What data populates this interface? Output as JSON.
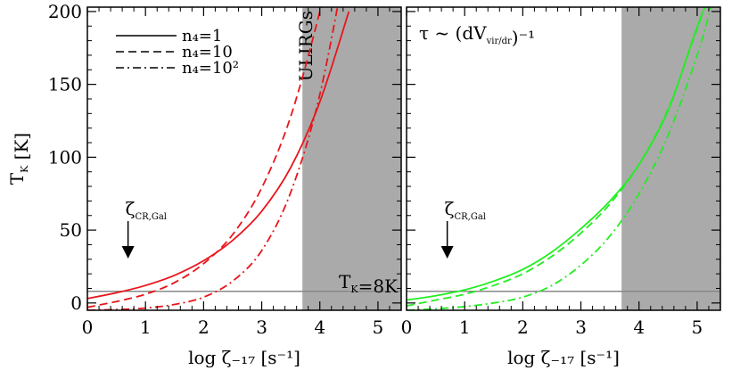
{
  "chart_data": [
    {
      "type": "line",
      "xlabel": "log ζ₋₁₇ [s⁻¹]",
      "ylabel": "T_K [K]",
      "xlim": [
        0,
        5.4
      ],
      "ylim": [
        -5,
        203
      ],
      "x_ticks": [
        "0",
        "1",
        "2",
        "3",
        "4",
        "5"
      ],
      "y_ticks": [
        "0",
        "50",
        "100",
        "150",
        "200"
      ],
      "color": "#e8151b",
      "shaded_region": {
        "from": 3.7,
        "to": 5.4,
        "label": "ULIRGs",
        "color": "#aaaaaa"
      },
      "hline": {
        "y": 8,
        "label": "T_K=8K",
        "color": "#888888"
      },
      "arrow": {
        "x": 0.7,
        "label": "ζ_CR,Gal"
      },
      "legend": [
        {
          "name": "n₄=1",
          "style": "solid"
        },
        {
          "name": "n₄=10",
          "style": "dashed"
        },
        {
          "name": "n₄=10²",
          "style": "dashdot"
        }
      ],
      "series": [
        {
          "name": "n₄=1",
          "style": "solid",
          "x": [
            0,
            0.5,
            1,
            1.5,
            2,
            2.5,
            3,
            3.5,
            4,
            4.5
          ],
          "values": [
            3,
            7,
            12,
            19,
            29,
            43,
            63,
            93,
            138,
            200
          ]
        },
        {
          "name": "n₄=10",
          "style": "dashed",
          "x": [
            0,
            0.5,
            1,
            1.5,
            2,
            2.5,
            3,
            3.5,
            4,
            4.2
          ],
          "values": [
            -3,
            1,
            6,
            14,
            27,
            47,
            79,
            128,
            200,
            240
          ]
        },
        {
          "name": "n₄=10²",
          "style": "dashdot",
          "x": [
            0,
            0.5,
            1,
            1.5,
            2,
            2.5,
            3,
            3.5,
            4,
            4.5
          ],
          "values": [
            -5,
            -4.5,
            -3.5,
            -1,
            4,
            15,
            36,
            76,
            143,
            245
          ]
        }
      ]
    },
    {
      "type": "line",
      "xlabel": "log ζ₋₁₇ [s⁻¹]",
      "ylabel": "",
      "annotation": "τ ~ (dV_vir/dr)⁻¹",
      "xlim": [
        0,
        5.4
      ],
      "ylim": [
        -5,
        203
      ],
      "x_ticks": [
        "0",
        "1",
        "2",
        "3",
        "4",
        "5"
      ],
      "color": "#22ee22",
      "shaded_region": {
        "from": 3.7,
        "to": 5.4,
        "color": "#aaaaaa"
      },
      "hline": {
        "y": 8,
        "color": "#888888"
      },
      "arrow": {
        "x": 0.7,
        "label": "ζ_CR,Gal"
      },
      "series": [
        {
          "name": "n₄=1",
          "style": "solid",
          "x": [
            0,
            0.5,
            1,
            1.5,
            2,
            2.5,
            3,
            3.5,
            4,
            4.5,
            4.9,
            5.1
          ],
          "values": [
            2,
            5,
            9,
            15,
            23,
            35,
            51,
            70,
            95,
            132,
            178,
            200
          ]
        },
        {
          "name": "n₄=10",
          "style": "dashed",
          "x": [
            0,
            0.5,
            1,
            1.5,
            2,
            2.5,
            3,
            3.5,
            4,
            4.5,
            4.9,
            5.15
          ],
          "values": [
            -2,
            2,
            6,
            12,
            20,
            32,
            48,
            68,
            95,
            133,
            177,
            205
          ]
        },
        {
          "name": "n₄=10²",
          "style": "dashdot",
          "x": [
            0,
            0.5,
            1,
            1.5,
            2,
            2.5,
            3,
            3.5,
            4,
            4.5,
            5,
            5.25
          ],
          "values": [
            -5,
            -4,
            -2.5,
            0,
            4,
            12,
            26,
            46,
            75,
            115,
            170,
            205
          ]
        }
      ]
    }
  ]
}
